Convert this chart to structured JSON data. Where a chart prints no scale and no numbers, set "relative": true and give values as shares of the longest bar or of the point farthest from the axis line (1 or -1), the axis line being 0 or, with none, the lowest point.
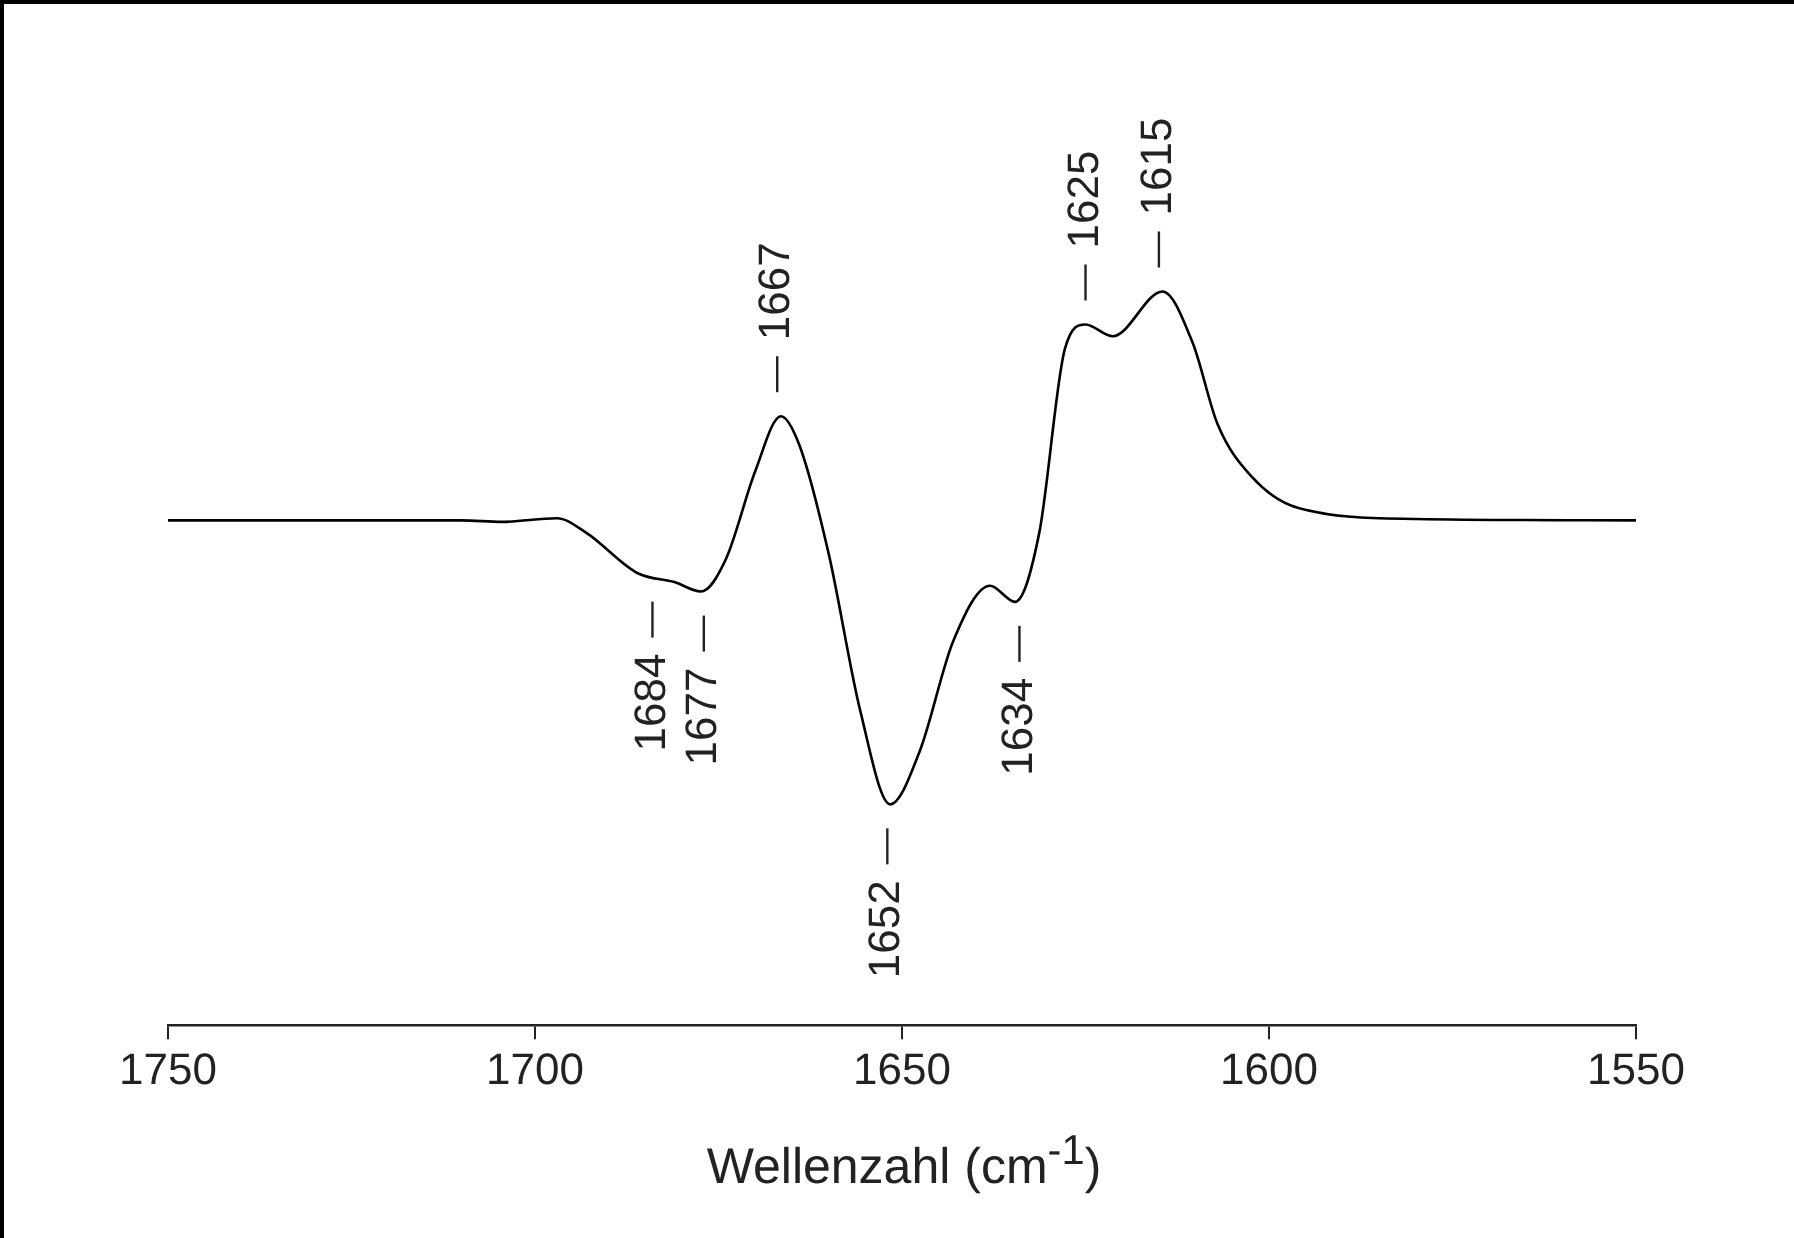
{
  "chart_data": {
    "type": "line",
    "relative": true,
    "xlabel": "Wellenzahl (cm$^{-1}$)",
    "xlim": [
      1750,
      1550
    ],
    "xticks": [
      1750,
      1700,
      1650,
      1600,
      1550
    ],
    "tick_labels": "x",
    "grid": false,
    "legend": false,
    "marker": "none",
    "line_style": "solid",
    "series": [
      {
        "color": "#000000",
        "x": [
          1750,
          1710,
          1704.5,
          1697,
          1693,
          1686,
          1681,
          1677.4,
          1674,
          1670,
          1666.5,
          1664,
          1660,
          1655.7,
          1651.6,
          1647.6,
          1643,
          1638,
          1634.6,
          1631.3,
          1627.8,
          1625,
          1621.3,
          1614.5,
          1610.4,
          1607,
          1602.3,
          1596,
          1580,
          1550
        ],
        "values": [
          0.688,
          0.688,
          0.686,
          0.691,
          0.671,
          0.616,
          0.604,
          0.591,
          0.635,
          0.755,
          0.83,
          0.791,
          0.643,
          0.429,
          0.301,
          0.373,
          0.524,
          0.599,
          0.577,
          0.671,
          0.922,
          0.955,
          0.939,
          1.0,
          0.93,
          0.819,
          0.747,
          0.705,
          0.69,
          0.688
        ]
      }
    ],
    "annotations": [
      {
        "text": "1684",
        "x": 1684,
        "y": 0.61
      },
      {
        "text": "1677",
        "x": 1677,
        "y": 0.591
      },
      {
        "text": "1667",
        "x": 1667,
        "y": 0.83
      },
      {
        "text": "1652",
        "x": 1652,
        "y": 0.301
      },
      {
        "text": "1634",
        "x": 1634,
        "y": 0.577
      },
      {
        "text": "1625",
        "x": 1625,
        "y": 0.955
      },
      {
        "text": "1615",
        "x": 1615,
        "y": 1.0
      }
    ]
  }
}
